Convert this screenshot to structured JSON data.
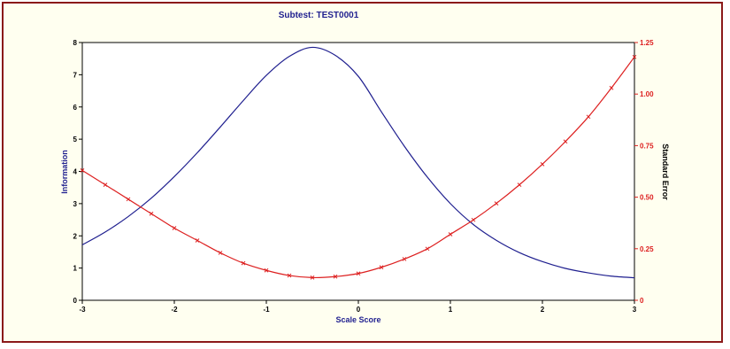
{
  "chart_data": {
    "type": "line",
    "title": "Subtest: TEST0001",
    "xlabel": "Scale Score",
    "ylabel_left": "Information",
    "ylabel_right": "Standard Error",
    "xlim": [
      -3,
      3
    ],
    "ylim_left": [
      0,
      8
    ],
    "ylim_right": [
      0,
      1.25
    ],
    "x_ticks": [
      "-3",
      "-2",
      "-1",
      "0",
      "1",
      "2",
      "3"
    ],
    "y_ticks_left": [
      "0",
      "1",
      "2",
      "3",
      "4",
      "5",
      "6",
      "7",
      "8"
    ],
    "y_ticks_right": [
      "0",
      "0.25",
      "0.50",
      "0.75",
      "1.00",
      "1.25"
    ],
    "grid": false,
    "series": [
      {
        "axis": "left",
        "color": "#1f1f8f",
        "marker": "none",
        "x": [
          -3.0,
          -2.75,
          -2.5,
          -2.25,
          -2.0,
          -1.75,
          -1.5,
          -1.25,
          -1.0,
          -0.75,
          -0.5,
          -0.25,
          0.0,
          0.25,
          0.5,
          0.75,
          1.0,
          1.25,
          1.5,
          1.75,
          2.0,
          2.25,
          2.5,
          2.75,
          3.0
        ],
        "y": [
          1.72,
          2.12,
          2.6,
          3.17,
          3.84,
          4.58,
          5.38,
          6.2,
          6.98,
          7.57,
          7.85,
          7.6,
          6.95,
          5.85,
          4.78,
          3.82,
          3.0,
          2.35,
          1.86,
          1.48,
          1.2,
          0.99,
          0.85,
          0.75,
          0.7
        ]
      },
      {
        "axis": "right",
        "color": "#dd2020",
        "marker": "x",
        "x": [
          -3.0,
          -2.75,
          -2.5,
          -2.25,
          -2.0,
          -1.75,
          -1.5,
          -1.25,
          -1.0,
          -0.75,
          -0.5,
          -0.25,
          0.0,
          0.25,
          0.5,
          0.75,
          1.0,
          1.25,
          1.5,
          1.75,
          2.0,
          2.25,
          2.5,
          2.75,
          3.0
        ],
        "y": [
          0.63,
          0.56,
          0.49,
          0.42,
          0.35,
          0.29,
          0.23,
          0.18,
          0.145,
          0.12,
          0.11,
          0.115,
          0.13,
          0.16,
          0.2,
          0.25,
          0.32,
          0.39,
          0.47,
          0.56,
          0.66,
          0.77,
          0.89,
          1.03,
          1.18
        ]
      }
    ]
  }
}
